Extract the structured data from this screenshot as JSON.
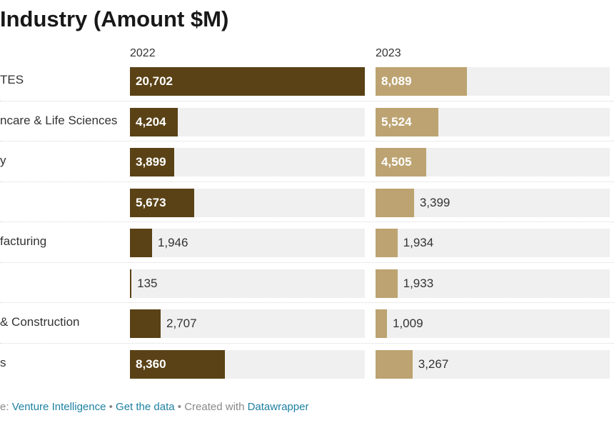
{
  "chart_data": {
    "type": "bar",
    "title": "Industry (Amount $M)",
    "categories": [
      "BFSI/ITES",
      "Healthcare & Life Sciences",
      "Technology",
      "",
      "Manufacturing",
      "",
      "Engineering & Construction",
      "Others"
    ],
    "category_labels_visible": [
      "TES",
      "ncare & Life Sciences",
      "y",
      "",
      "facturing",
      "",
      " & Construction",
      "s"
    ],
    "series": [
      {
        "name": "2022",
        "color": "#5a4216",
        "values": [
          20702,
          4204,
          3899,
          5673,
          1946,
          135,
          2707,
          8360
        ]
      },
      {
        "name": "2023",
        "color": "#bca371",
        "values": [
          8089,
          5524,
          4505,
          3399,
          1934,
          1933,
          1009,
          3267
        ]
      }
    ],
    "xlim": [
      0,
      20702
    ],
    "value_labels": {
      "2022": [
        "20,702",
        "4,204",
        "3,899",
        "5,673",
        "1,946",
        "135",
        "2,707",
        "8,360"
      ],
      "2023": [
        "8,089",
        "5,524",
        "4,505",
        "3,399",
        "1,934",
        "1,933",
        "1,009",
        "3,267"
      ]
    },
    "xlabel": "",
    "ylabel": ""
  },
  "footer": {
    "source_prefix": "e: ",
    "source_link": "Venture Intelligence",
    "bullet1": " • ",
    "get_data": "Get the data",
    "bullet2": " • ",
    "created_with": "Created with ",
    "datawrapper": "Datawrapper"
  }
}
